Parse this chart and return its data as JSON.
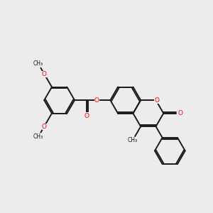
{
  "bg": "#ececec",
  "bc": "#1a1a1a",
  "oc": "#ff0000",
  "lw": 1.4,
  "fs": 6.5,
  "figsize": [
    3.0,
    3.0
  ],
  "dpi": 100,
  "xlim": [
    0,
    10
  ],
  "ylim": [
    0,
    10
  ],
  "BL": 0.72
}
